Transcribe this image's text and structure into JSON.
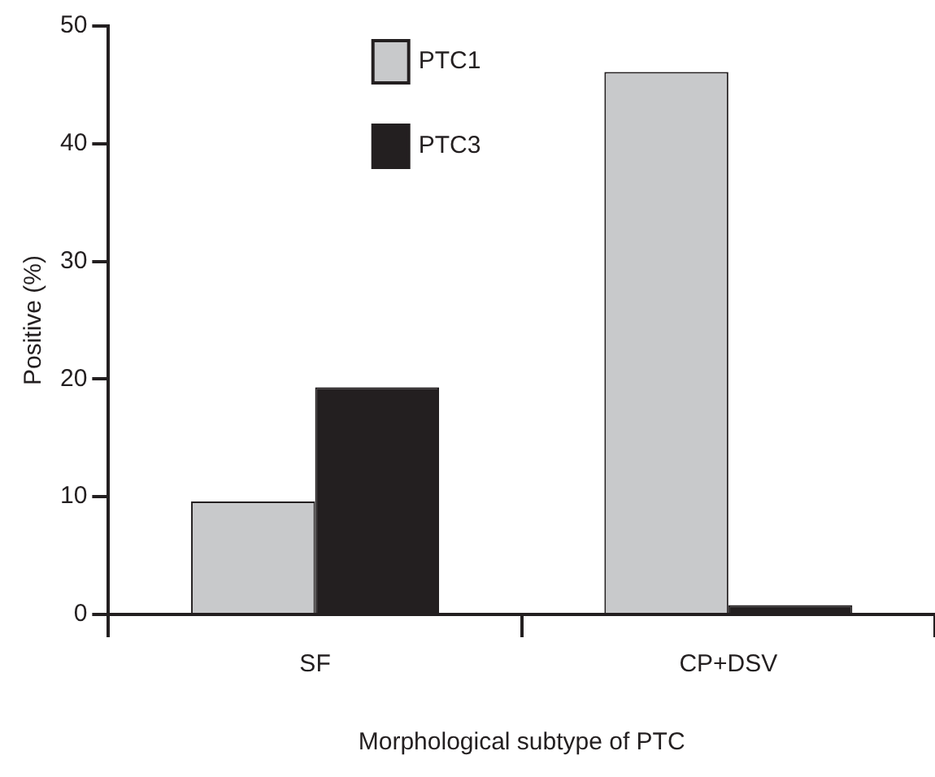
{
  "chart_data": {
    "type": "bar",
    "xlabel": "Morphological subtype of PTC",
    "ylabel": "Positive (%)",
    "categories": [
      "SF",
      "CP+DSV"
    ],
    "series": [
      {
        "name": "PTC1",
        "color": "#c8c9cb",
        "values": [
          9.6,
          46.1
        ]
      },
      {
        "name": "PTC3",
        "color": "#231f20",
        "values": [
          19.3,
          0.8
        ]
      }
    ],
    "ylim": [
      0,
      50
    ],
    "yticks": [
      0,
      10,
      20,
      30,
      40,
      50
    ],
    "grid": false,
    "legend": "top"
  }
}
